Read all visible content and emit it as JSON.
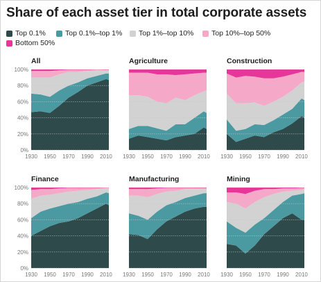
{
  "title": "Share of each asset tier in total corporate assets",
  "colors": {
    "top_0_1": "#2e4a4b",
    "top_0_1_to_1": "#4b9aa1",
    "top_1_to_10": "#d2d2d2",
    "top_10_to_50": "#f5a8c8",
    "bottom_50": "#e8359a",
    "gridline": "#c8c8c8",
    "axis_text": "#777777",
    "panel_title": "#1e1e1e"
  },
  "legend": [
    {
      "key": "top_0_1",
      "label": "Top 0.1%"
    },
    {
      "key": "top_0_1_to_1",
      "label": "Top 0.1%–top 1%"
    },
    {
      "key": "top_1_to_10",
      "label": "Top 1%–top 10%"
    },
    {
      "key": "top_10_to_50",
      "label": "Top 10%–top 50%"
    },
    {
      "key": "bottom_50",
      "label": "Bottom 50%"
    }
  ],
  "chart_data": [
    {
      "type": "area",
      "stacked": true,
      "title": "All",
      "x": [
        1930,
        1940,
        1950,
        1960,
        1970,
        1980,
        1990,
        2000,
        2010,
        2013
      ],
      "xticks": [
        1930,
        1950,
        1970,
        1990,
        2010
      ],
      "yticks": [
        0,
        20,
        40,
        60,
        80,
        100
      ],
      "ytick_suffix": "%",
      "ylim": [
        0,
        100
      ],
      "series": [
        {
          "name": "Top 0.1%",
          "values": [
            47,
            48,
            46,
            55,
            65,
            72,
            80,
            84,
            88,
            87
          ]
        },
        {
          "name": "Top 0.1%–top 1%",
          "values": [
            23,
            21,
            20,
            19,
            15,
            12,
            9,
            8,
            7,
            8
          ]
        },
        {
          "name": "Top 1%–top 10%",
          "values": [
            20,
            21,
            24,
            20,
            17,
            13,
            9,
            7,
            4,
            4
          ]
        },
        {
          "name": "Top 10%–top 50%",
          "values": [
            8,
            8,
            8,
            5,
            2.5,
            2.5,
            1.5,
            0.8,
            0.6,
            0.6
          ]
        },
        {
          "name": "Bottom 50%",
          "values": [
            2,
            2,
            2,
            1,
            0.5,
            0.5,
            0.5,
            0.2,
            0.4,
            0.4
          ]
        }
      ]
    },
    {
      "type": "area",
      "stacked": true,
      "title": "Agriculture",
      "x": [
        1930,
        1940,
        1950,
        1960,
        1970,
        1980,
        1990,
        2000,
        2010,
        2013
      ],
      "xticks": [
        1930,
        1950,
        1970,
        1990,
        2010
      ],
      "yticks": [
        0,
        20,
        40,
        60,
        80,
        100
      ],
      "ytick_suffix": "%",
      "ylim": [
        0,
        100
      ],
      "series": [
        {
          "name": "Top 0.1%",
          "values": [
            14,
            18,
            16,
            14,
            12,
            16,
            18,
            20,
            28,
            26
          ]
        },
        {
          "name": "Top 0.1%–top 1%",
          "values": [
            12,
            12,
            14,
            13,
            12,
            16,
            14,
            20,
            20,
            20
          ]
        },
        {
          "name": "Top 1%–top 10%",
          "values": [
            42,
            38,
            36,
            33,
            34,
            33,
            30,
            28,
            25,
            28
          ]
        },
        {
          "name": "Top 10%–top 50%",
          "values": [
            28,
            28,
            30,
            34,
            36,
            28,
            32,
            27,
            23,
            22
          ]
        },
        {
          "name": "Bottom 50%",
          "values": [
            4,
            4,
            4,
            6,
            6,
            7,
            6,
            5,
            4,
            4
          ]
        }
      ]
    },
    {
      "type": "area",
      "stacked": true,
      "title": "Construction",
      "x": [
        1930,
        1940,
        1950,
        1960,
        1970,
        1980,
        1990,
        2000,
        2010,
        2013
      ],
      "xticks": [
        1930,
        1950,
        1970,
        1990,
        2010
      ],
      "yticks": [
        0,
        20,
        40,
        60,
        80,
        100
      ],
      "ytick_suffix": "%",
      "ylim": [
        0,
        100
      ],
      "series": [
        {
          "name": "Top 0.1%",
          "values": [
            20,
            10,
            14,
            18,
            16,
            22,
            26,
            33,
            42,
            40
          ]
        },
        {
          "name": "Top 0.1%–top 1%",
          "values": [
            18,
            14,
            12,
            14,
            15,
            15,
            18,
            18,
            22,
            22
          ]
        },
        {
          "name": "Top 1%–top 10%",
          "values": [
            32,
            34,
            32,
            27,
            24,
            23,
            22,
            23,
            20,
            23
          ]
        },
        {
          "name": "Top 10%–top 50%",
          "values": [
            25,
            32,
            34,
            32,
            34,
            29,
            25,
            20,
            13,
            12
          ]
        },
        {
          "name": "Bottom 50%",
          "values": [
            5,
            10,
            8,
            9,
            11,
            11,
            9,
            6,
            3,
            3
          ]
        }
      ]
    },
    {
      "type": "area",
      "stacked": true,
      "title": "Finance",
      "x": [
        1930,
        1940,
        1950,
        1960,
        1970,
        1980,
        1990,
        2000,
        2010,
        2013
      ],
      "xticks": [
        1930,
        1950,
        1970,
        1990,
        2010
      ],
      "yticks": [
        0,
        20,
        40,
        60,
        80,
        100
      ],
      "ytick_suffix": "%",
      "ylim": [
        0,
        100
      ],
      "series": [
        {
          "name": "Top 0.1%",
          "values": [
            40,
            46,
            52,
            56,
            58,
            62,
            68,
            74,
            80,
            78
          ]
        },
        {
          "name": "Top 0.1%–top 1%",
          "values": [
            22,
            24,
            22,
            21,
            22,
            20,
            18,
            15,
            14,
            15
          ]
        },
        {
          "name": "Top 1%–top 10%",
          "values": [
            24,
            20,
            17,
            16,
            15,
            14,
            11,
            9,
            5,
            6
          ]
        },
        {
          "name": "Top 10%–top 50%",
          "values": [
            11,
            8,
            7,
            6,
            4.5,
            3.5,
            2.5,
            1.5,
            0.8,
            0.8
          ]
        },
        {
          "name": "Bottom 50%",
          "values": [
            3,
            2,
            2,
            1,
            0.5,
            0.5,
            0.5,
            0.5,
            0.2,
            0.2
          ]
        }
      ]
    },
    {
      "type": "area",
      "stacked": true,
      "title": "Manufacturing",
      "x": [
        1930,
        1940,
        1950,
        1960,
        1970,
        1980,
        1990,
        2000,
        2010,
        2013
      ],
      "xticks": [
        1930,
        1950,
        1970,
        1990,
        2010
      ],
      "yticks": [
        0,
        20,
        40,
        60,
        80,
        100
      ],
      "ytick_suffix": "%",
      "ylim": [
        0,
        100
      ],
      "series": [
        {
          "name": "Top 0.1%",
          "values": [
            42,
            41,
            36,
            48,
            58,
            64,
            70,
            74,
            76,
            76
          ]
        },
        {
          "name": "Top 0.1%–top 1%",
          "values": [
            26,
            24,
            24,
            22,
            20,
            18,
            17,
            16,
            17,
            17
          ]
        },
        {
          "name": "Top 1%–top 10%",
          "values": [
            22,
            25,
            28,
            22,
            17,
            14,
            11,
            8,
            5,
            5
          ]
        },
        {
          "name": "Top 10%–top 50%",
          "values": [
            8,
            8,
            10,
            7,
            4.5,
            3.5,
            1.5,
            1.5,
            1.5,
            1.5
          ]
        },
        {
          "name": "Bottom 50%",
          "values": [
            2,
            2,
            2,
            1,
            0.5,
            0.5,
            0.5,
            0.5,
            0.5,
            0.5
          ]
        }
      ]
    },
    {
      "type": "area",
      "stacked": true,
      "title": "Mining",
      "x": [
        1930,
        1940,
        1950,
        1960,
        1970,
        1980,
        1990,
        2000,
        2010,
        2013
      ],
      "xticks": [
        1930,
        1950,
        1970,
        1990,
        2010
      ],
      "yticks": [
        0,
        20,
        40,
        60,
        80,
        100
      ],
      "ytick_suffix": "%",
      "ylim": [
        0,
        100
      ],
      "series": [
        {
          "name": "Top 0.1%",
          "values": [
            30,
            28,
            18,
            28,
            42,
            52,
            62,
            68,
            60,
            60
          ]
        },
        {
          "name": "Top 0.1%–top 1%",
          "values": [
            28,
            22,
            26,
            26,
            20,
            20,
            20,
            22,
            32,
            33
          ]
        },
        {
          "name": "Top 1%–top 10%",
          "values": [
            24,
            30,
            30,
            28,
            26,
            20,
            13,
            6,
            5,
            5
          ]
        },
        {
          "name": "Top 10%–top 50%",
          "values": [
            12,
            14,
            18,
            14,
            10,
            6,
            4,
            3,
            2.5,
            1.5
          ]
        },
        {
          "name": "Bottom 50%",
          "values": [
            6,
            6,
            8,
            4,
            2,
            2,
            1,
            1,
            0.5,
            0.5
          ]
        }
      ]
    }
  ]
}
